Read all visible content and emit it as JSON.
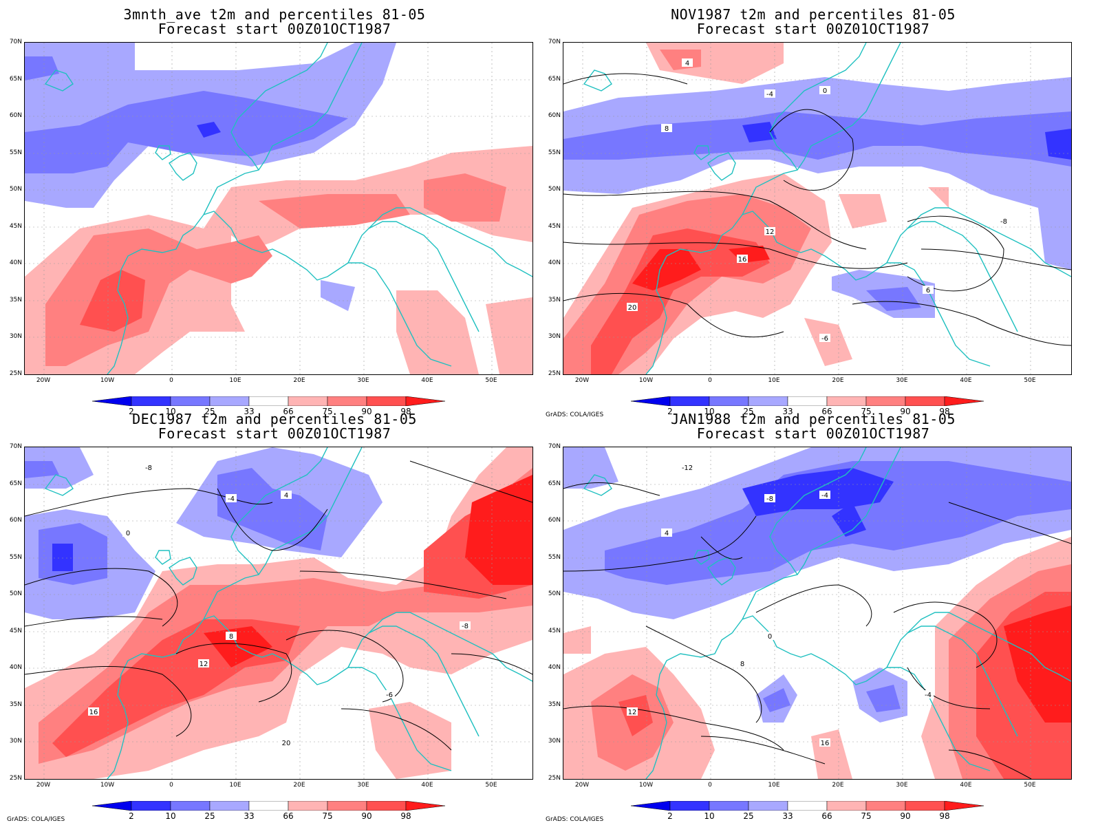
{
  "panels": [
    {
      "title_line1": "3mnth_ave t2m and percentiles 81-05",
      "title_line2": "Forecast start 00Z01OCT1987",
      "credit": ""
    },
    {
      "title_line1": "NOV1987 t2m and percentiles 81-05",
      "title_line2": "Forecast start 00Z01OCT1987",
      "credit": "GrADS: COLA/IGES"
    },
    {
      "title_line1": "DEC1987 t2m and percentiles 81-05",
      "title_line2": "Forecast start 00Z01OCT1987",
      "credit": "GrADS: COLA/IGES"
    },
    {
      "title_line1": "JAN1988 t2m and percentiles 81-05",
      "title_line2": "Forecast start 00Z01OCT1987",
      "credit": "GrADS: COLA/IGES"
    }
  ],
  "lat_labels": [
    "70N",
    "65N",
    "60N",
    "55N",
    "50N",
    "45N",
    "40N",
    "35N",
    "30N",
    "25N"
  ],
  "lon_labels": [
    "20W",
    "10W",
    "0",
    "10E",
    "20E",
    "30E",
    "40E",
    "50E"
  ],
  "colorbar": {
    "labels": [
      "2",
      "10",
      "25",
      "33",
      "66",
      "75",
      "90",
      "98"
    ],
    "colors": [
      "#0000ee",
      "#3333ff",
      "#7777ff",
      "#a8a8ff",
      "#ffffff",
      "#ffb4b4",
      "#ff8080",
      "#ff5050",
      "#ff1c1c"
    ]
  },
  "legend_meaning": {
    "blue": "below normal percentiles",
    "red": "above normal percentiles"
  },
  "contour_labels": {
    "panel2": [
      "4",
      "-4",
      "0",
      "8",
      "12",
      "16",
      "20",
      "-6",
      "6",
      "-8"
    ],
    "panel3": [
      "-8",
      "-4",
      "4",
      "0",
      "8",
      "12",
      "16",
      "20",
      "-6",
      "-8"
    ],
    "panel4": [
      "-12",
      "-8",
      "-4",
      "4",
      "0",
      "8",
      "12",
      "16",
      "-4"
    ]
  }
}
